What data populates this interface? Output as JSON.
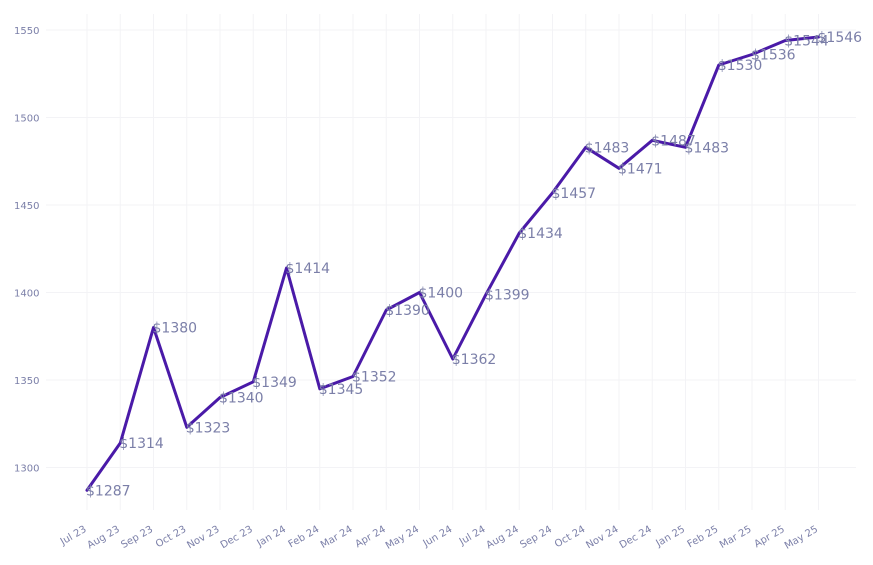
{
  "chart_data": {
    "type": "line",
    "categories": [
      "Jul 23",
      "Aug 23",
      "Sep 23",
      "Oct 23",
      "Nov 23",
      "Dec 23",
      "Jan 24",
      "Feb 24",
      "Mar 24",
      "Apr 24",
      "May 24",
      "Jun 24",
      "Jul 24",
      "Aug 24",
      "Sep 24",
      "Oct 24",
      "Nov 24",
      "Dec 24",
      "Jan 25",
      "Feb 25",
      "Mar 25",
      "Apr 25",
      "May 25"
    ],
    "values": [
      1287,
      1314,
      1380,
      1323,
      1340,
      1349,
      1414,
      1345,
      1352,
      1390,
      1400,
      1362,
      1399,
      1434,
      1457,
      1483,
      1471,
      1487,
      1483,
      1530,
      1536,
      1544,
      1546
    ],
    "data_labels": [
      "$1287",
      "$1314",
      "$1380",
      "$1323",
      "$1340",
      "$1349",
      "$1414",
      "$1345",
      "$1352",
      "$1390",
      "$1400",
      "$1362",
      "$1399",
      "$1434",
      "$1457",
      "$1483",
      "$1471",
      "$1487",
      "$1483",
      "$1530",
      "$1536",
      "$1544",
      "$1546"
    ],
    "y_ticks": [
      1300,
      1350,
      1400,
      1450,
      1500,
      1550
    ],
    "ylim": [
      1278,
      1558
    ],
    "grid": true,
    "line_color": "#4a1aa8",
    "label_color": "#7b7fa8"
  }
}
